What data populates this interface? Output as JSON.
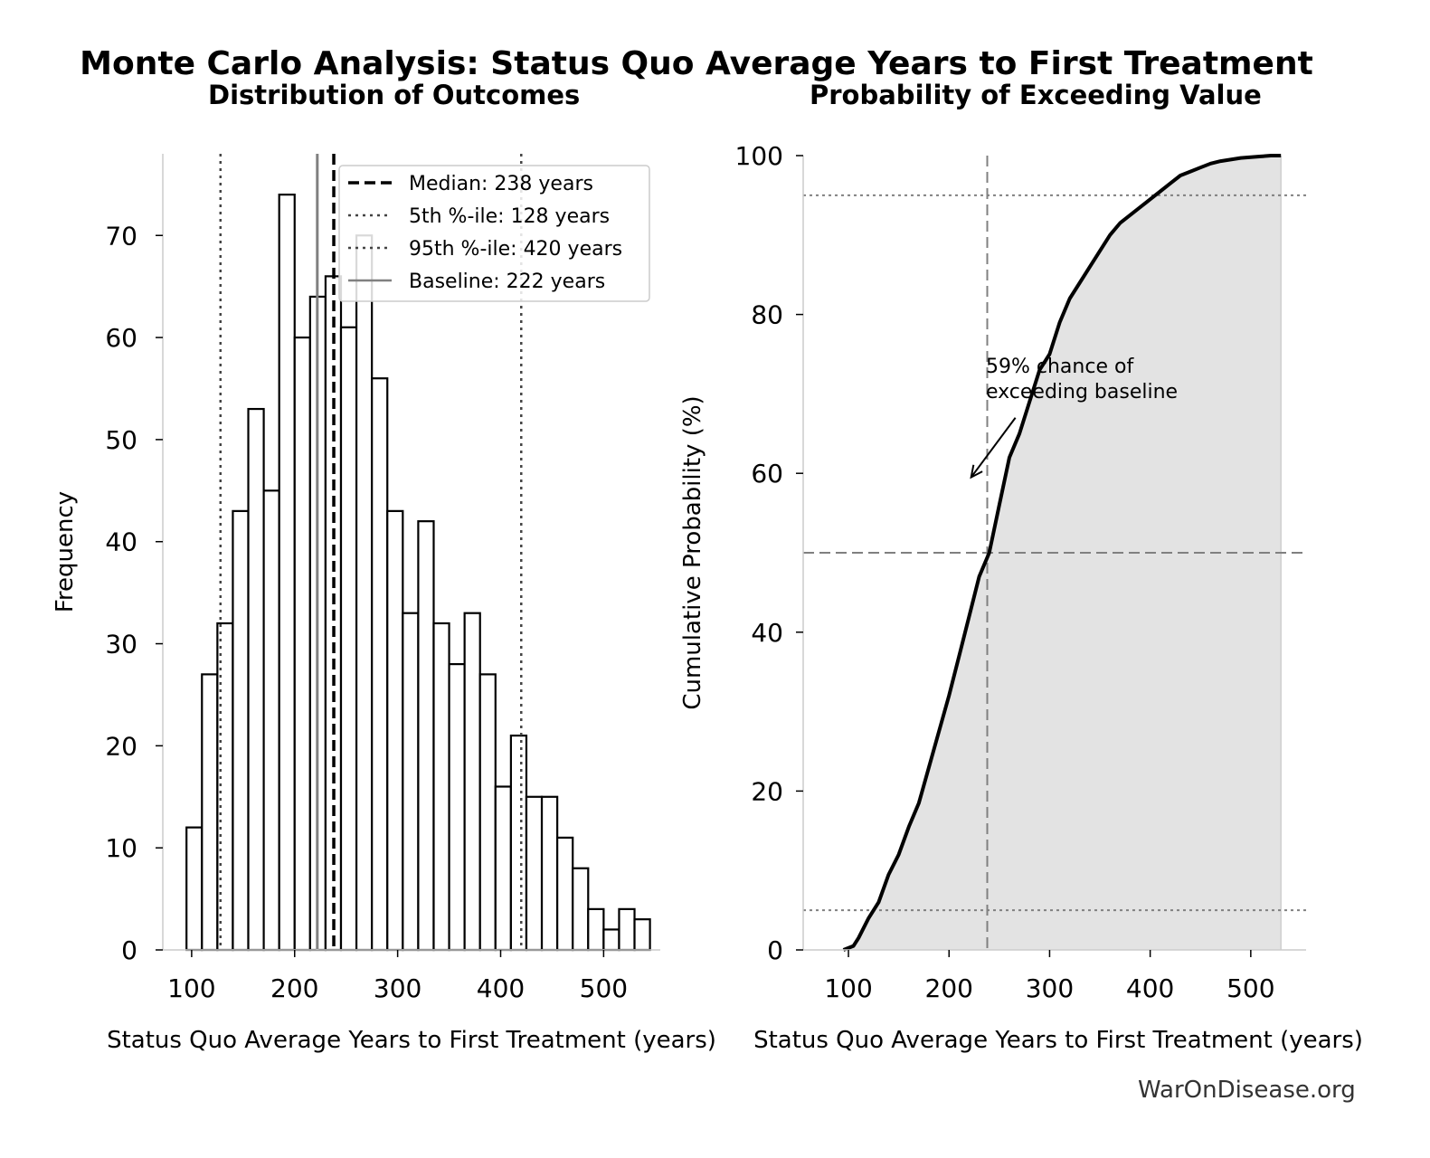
{
  "suptitle": "Monte Carlo Analysis: Status Quo Average Years to First Treatment",
  "watermark": "WarOnDisease.org",
  "chart_data": [
    {
      "type": "bar",
      "subtype": "histogram",
      "title": "Distribution of Outcomes",
      "xlabel": "Status Quo Average Years to First Treatment (years)",
      "ylabel": "Frequency",
      "xlim": [
        72,
        555
      ],
      "ylim": [
        0,
        78
      ],
      "xticks": [
        100,
        200,
        300,
        400,
        500
      ],
      "yticks": [
        0,
        10,
        20,
        30,
        40,
        50,
        60,
        70
      ],
      "bins": [
        {
          "x0": 95,
          "x1": 110,
          "count": 12
        },
        {
          "x0": 110,
          "x1": 125,
          "count": 27
        },
        {
          "x0": 125,
          "x1": 140,
          "count": 32
        },
        {
          "x0": 140,
          "x1": 155,
          "count": 43
        },
        {
          "x0": 155,
          "x1": 170,
          "count": 53
        },
        {
          "x0": 170,
          "x1": 185,
          "count": 45
        },
        {
          "x0": 185,
          "x1": 200,
          "count": 74
        },
        {
          "x0": 200,
          "x1": 215,
          "count": 60
        },
        {
          "x0": 215,
          "x1": 230,
          "count": 64
        },
        {
          "x0": 230,
          "x1": 245,
          "count": 66
        },
        {
          "x0": 245,
          "x1": 260,
          "count": 61
        },
        {
          "x0": 260,
          "x1": 275,
          "count": 70
        },
        {
          "x0": 275,
          "x1": 290,
          "count": 56
        },
        {
          "x0": 290,
          "x1": 305,
          "count": 43
        },
        {
          "x0": 305,
          "x1": 320,
          "count": 33
        },
        {
          "x0": 320,
          "x1": 335,
          "count": 42
        },
        {
          "x0": 335,
          "x1": 350,
          "count": 32
        },
        {
          "x0": 350,
          "x1": 365,
          "count": 28
        },
        {
          "x0": 365,
          "x1": 380,
          "count": 33
        },
        {
          "x0": 380,
          "x1": 395,
          "count": 27
        },
        {
          "x0": 395,
          "x1": 410,
          "count": 16
        },
        {
          "x0": 410,
          "x1": 425,
          "count": 21
        },
        {
          "x0": 425,
          "x1": 440,
          "count": 15
        },
        {
          "x0": 440,
          "x1": 455,
          "count": 15
        },
        {
          "x0": 455,
          "x1": 470,
          "count": 11
        },
        {
          "x0": 470,
          "x1": 485,
          "count": 8
        },
        {
          "x0": 485,
          "x1": 500,
          "count": 4
        },
        {
          "x0": 500,
          "x1": 515,
          "count": 2
        },
        {
          "x0": 515,
          "x1": 530,
          "count": 4
        },
        {
          "x0": 530,
          "x1": 545,
          "count": 3
        }
      ],
      "reference_lines": [
        {
          "label": "Median: 238 years",
          "value": 238,
          "style": "dashed",
          "color": "#000000"
        },
        {
          "label": "5th %-ile: 128 years",
          "value": 128,
          "style": "dotted",
          "color": "#444444"
        },
        {
          "label": "95th %-ile: 420 years",
          "value": 420,
          "style": "dotted",
          "color": "#444444"
        },
        {
          "label": "Baseline: 222 years",
          "value": 222,
          "style": "solid",
          "color": "#808080"
        }
      ],
      "legend_position": "upper-right"
    },
    {
      "type": "area",
      "subtype": "cumulative distribution",
      "title": "Probability of Exceeding Value",
      "xlabel": "Status Quo Average Years to First Treatment (years)",
      "ylabel": "Cumulative Probability (%)",
      "xlim": [
        55,
        555
      ],
      "ylim": [
        0,
        100
      ],
      "xticks": [
        100,
        200,
        300,
        400,
        500
      ],
      "yticks": [
        0,
        20,
        40,
        60,
        80,
        100
      ],
      "x": [
        95,
        105,
        110,
        120,
        130,
        140,
        150,
        160,
        170,
        180,
        190,
        200,
        210,
        220,
        230,
        240,
        250,
        260,
        270,
        280,
        290,
        300,
        310,
        320,
        330,
        340,
        350,
        360,
        370,
        380,
        390,
        400,
        410,
        420,
        430,
        440,
        450,
        460,
        470,
        480,
        490,
        500,
        510,
        520,
        530
      ],
      "y": [
        0,
        0.5,
        1.5,
        4,
        6,
        9.5,
        12,
        15.5,
        18.5,
        23,
        27.5,
        32,
        37,
        42,
        47,
        50,
        56,
        62,
        65,
        69,
        73,
        75,
        79,
        82,
        84,
        86,
        88,
        90,
        91.5,
        92.5,
        93.5,
        94.5,
        95.5,
        96.5,
        97.5,
        98,
        98.5,
        99,
        99.3,
        99.5,
        99.7,
        99.8,
        99.9,
        100,
        100
      ],
      "hlines": [
        {
          "value": 95,
          "style": "dotted",
          "color": "#808080"
        },
        {
          "value": 50,
          "style": "dashed",
          "color": "#808080"
        },
        {
          "value": 5,
          "style": "dotted",
          "color": "#808080"
        }
      ],
      "vlines": [
        {
          "value": 238,
          "style": "dashed",
          "color": "#808080"
        }
      ],
      "annotation": {
        "lines": [
          "59% chance of",
          "exceeding baseline"
        ],
        "arrow_from": {
          "x": 266,
          "y": 67
        },
        "arrow_to": {
          "x": 222,
          "y": 59.5
        }
      }
    }
  ]
}
